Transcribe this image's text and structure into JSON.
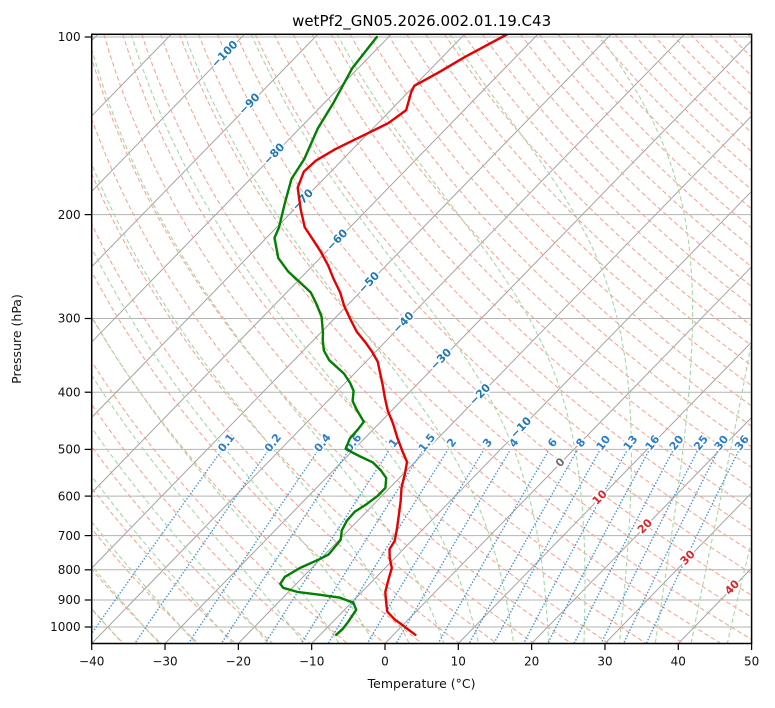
{
  "title": "wetPf2_GN05.2026.002.01.19.C43",
  "axes": {
    "xlabel": "Temperature (°C)",
    "ylabel": "Pressure (hPa)",
    "x_tick_values": [
      -40,
      -30,
      -20,
      -10,
      0,
      10,
      20,
      30,
      40,
      50
    ],
    "x_tick_labels": [
      "−40",
      "−30",
      "−20",
      "−10",
      "0",
      "10",
      "20",
      "30",
      "40",
      "50"
    ],
    "y_tick_values": [
      100,
      200,
      300,
      400,
      500,
      600,
      700,
      800,
      900,
      1000
    ],
    "y_tick_labels": [
      "100",
      "200",
      "300",
      "400",
      "500",
      "600",
      "700",
      "800",
      "900",
      "1000"
    ]
  },
  "chart_data": {
    "type": "line",
    "variant": "skew-T log-p thermodynamic sounding",
    "title": "wetPf2_GN05.2026.002.01.19.C43",
    "xlabel": "Temperature (°C)",
    "ylabel": "Pressure (hPa)",
    "x_range_c": [
      -40,
      50
    ],
    "pressure_top_hpa": 99,
    "pressure_bottom_hpa": 1066,
    "skew": "isotherms skewed 45 degrees",
    "grid": true,
    "pressure_gridlines_hpa": [
      100,
      200,
      300,
      400,
      500,
      600,
      700,
      800,
      900,
      1000
    ],
    "isotherms_c": {
      "start": -160,
      "end": 50,
      "step": 10
    },
    "isotherm_labels": [
      {
        "t": -100,
        "label": "−100",
        "p": 107
      },
      {
        "t": -90,
        "label": "−90",
        "p": 130
      },
      {
        "t": -80,
        "label": "−80",
        "p": 158
      },
      {
        "t": -70,
        "label": "−70",
        "p": 189
      },
      {
        "t": -60,
        "label": "−60",
        "p": 221
      },
      {
        "t": -50,
        "label": "−50",
        "p": 261
      },
      {
        "t": -40,
        "label": "−40",
        "p": 305
      },
      {
        "t": -30,
        "label": "−30",
        "p": 352
      },
      {
        "t": -20,
        "label": "−20",
        "p": 404
      },
      {
        "t": -10,
        "label": "−10",
        "p": 460
      },
      {
        "t": 0,
        "label": "0",
        "p": 527
      },
      {
        "t": 10,
        "label": "10",
        "p": 604
      },
      {
        "t": 20,
        "label": "20",
        "p": 676
      },
      {
        "t": 30,
        "label": "30",
        "p": 764
      },
      {
        "t": 40,
        "label": "40",
        "p": 858
      }
    ],
    "dry_adiabats_theta_c": {
      "start": -45,
      "end": 350,
      "step": 5
    },
    "moist_adiabats_t0_c": {
      "start": -40,
      "end": 45,
      "step": 5
    },
    "mixing_ratio_lines_g_kg": [
      0.1,
      0.2,
      0.4,
      0.6,
      1,
      1.5,
      2,
      3,
      4,
      6,
      8,
      10,
      13,
      16,
      20,
      25,
      30,
      36
    ],
    "mixing_ratio_labels": [
      "0.1",
      "0.2",
      "0.4",
      "0.6",
      "1",
      "1.5",
      "2",
      "3",
      "4",
      "6",
      "8",
      "10",
      "13",
      "16",
      "20",
      "25",
      "30",
      "36"
    ],
    "mixing_ratio_label_pressure_hpa": 488,
    "mixing_ratio_line_top_hpa": 505,
    "series": [
      {
        "name": "temperature",
        "color": "#e60000",
        "pressure_hpa": [
          99,
          108,
          115,
          121,
          124,
          133,
          140,
          145,
          150,
          155,
          162,
          169,
          180,
          196,
          210,
          221,
          231,
          244,
          257,
          271,
          286,
          300,
          316,
          330,
          342,
          355,
          369,
          389,
          409,
          430,
          452,
          478,
          505,
          525,
          550,
          581,
          611,
          643,
          679,
          714,
          738,
          764,
          794,
          838,
          872,
          906,
          942,
          972,
          992,
          1011,
          1031
        ],
        "value_c": [
          -64.2,
          -66.9,
          -68.5,
          -70.0,
          -69.6,
          -67.9,
          -68.6,
          -69.9,
          -71.2,
          -72.4,
          -73.5,
          -73.7,
          -72.4,
          -69.1,
          -66.2,
          -63.3,
          -60.8,
          -57.9,
          -55.4,
          -52.7,
          -50.3,
          -47.9,
          -45.2,
          -42.5,
          -40.4,
          -38.4,
          -36.8,
          -34.6,
          -32.6,
          -30.5,
          -28.1,
          -25.6,
          -23.0,
          -21.1,
          -19.8,
          -18.4,
          -16.8,
          -15.3,
          -13.7,
          -12.3,
          -11.9,
          -10.7,
          -9.1,
          -7.8,
          -6.8,
          -5.4,
          -3.9,
          -1.8,
          -0.1,
          1.4,
          3.0
        ]
      },
      {
        "name": "dewpoint",
        "color": "#008000",
        "pressure_hpa": [
          100,
          113,
          129,
          143,
          161,
          174,
          192,
          210,
          219,
          237,
          250,
          261,
          271,
          284,
          298,
          318,
          326,
          340,
          353,
          372,
          386,
          398,
          414,
          428,
          449,
          463,
          479,
          499,
          513,
          526,
          543,
          559,
          581,
          600,
          619,
          638,
          660,
          686,
          712,
          754,
          769,
          794,
          822,
          845,
          858,
          872,
          882,
          892,
          910,
          935,
          980,
          1007,
          1031
        ],
        "value_c": [
          -81.6,
          -80.8,
          -78.8,
          -77.5,
          -75.3,
          -74.4,
          -72.0,
          -69.7,
          -68.9,
          -65.7,
          -62.5,
          -59.4,
          -56.7,
          -54.3,
          -52.0,
          -49.6,
          -48.8,
          -47.2,
          -45.2,
          -41.4,
          -39.3,
          -37.8,
          -36.6,
          -34.9,
          -32.3,
          -32.1,
          -32.0,
          -31.2,
          -28.4,
          -25.7,
          -23.5,
          -21.8,
          -20.6,
          -20.6,
          -21.0,
          -21.6,
          -21.5,
          -20.9,
          -19.8,
          -19.5,
          -20.2,
          -21.6,
          -22.5,
          -22.2,
          -21.3,
          -18.8,
          -15.3,
          -12.2,
          -9.7,
          -8.4,
          -7.9,
          -7.7,
          -7.8
        ]
      }
    ],
    "legend": "none"
  },
  "colors": {
    "temperature_line": "#e60000",
    "dewpoint_line": "#008000",
    "isotherm_line": "#a3a3a3",
    "pressure_gridline": "#b3b3b3",
    "dry_adiabat": "#f7a08c",
    "moist_adiabat": "#a6d7a6",
    "mixing_ratio_line": "#4292d6",
    "isotherm_label_negative": "#2077b4",
    "isotherm_label_zero": "#6e6e6e",
    "isotherm_label_positive": "#d62728",
    "mixing_ratio_label": "#2d7dc8",
    "axis": "#000000"
  }
}
